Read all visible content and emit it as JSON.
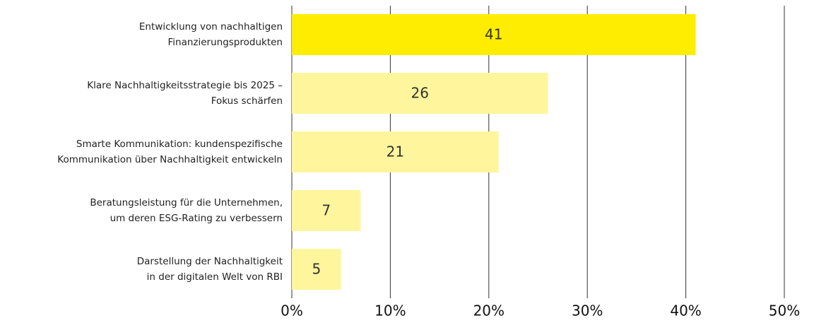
{
  "chart_data": {
    "type": "hbar",
    "categories": [
      [
        "Entwicklung von nachhaltigen",
        "Finanzierungsprodukten"
      ],
      [
        "Klare Nachhaltigkeitsstrategie bis 2025 –",
        "Fokus schärfen"
      ],
      [
        "Smarte Kommunikation: kundenspezifische",
        "Kommunikation über Nachhaltigkeit entwickeln"
      ],
      [
        "Beratungsleistung für die Unternehmen,",
        "um deren ESG-Rating zu verbessern"
      ],
      [
        "Darstellung der Nachhaltigkeit",
        "in der digitalen Welt von RBI"
      ]
    ],
    "values": [
      41,
      26,
      21,
      7,
      5
    ],
    "colors": [
      "#ffed00",
      "#fff59c",
      "#fff59c",
      "#fff59c",
      "#fff59c"
    ],
    "xlim": [
      0,
      50
    ],
    "xticks": [
      {
        "value": 0,
        "label": "0%"
      },
      {
        "value": 10,
        "label": "10%"
      },
      {
        "value": 20,
        "label": "20%"
      },
      {
        "value": 30,
        "label": "30%"
      },
      {
        "value": 40,
        "label": "40%"
      },
      {
        "value": 50,
        "label": "50%"
      }
    ],
    "grid": true
  }
}
